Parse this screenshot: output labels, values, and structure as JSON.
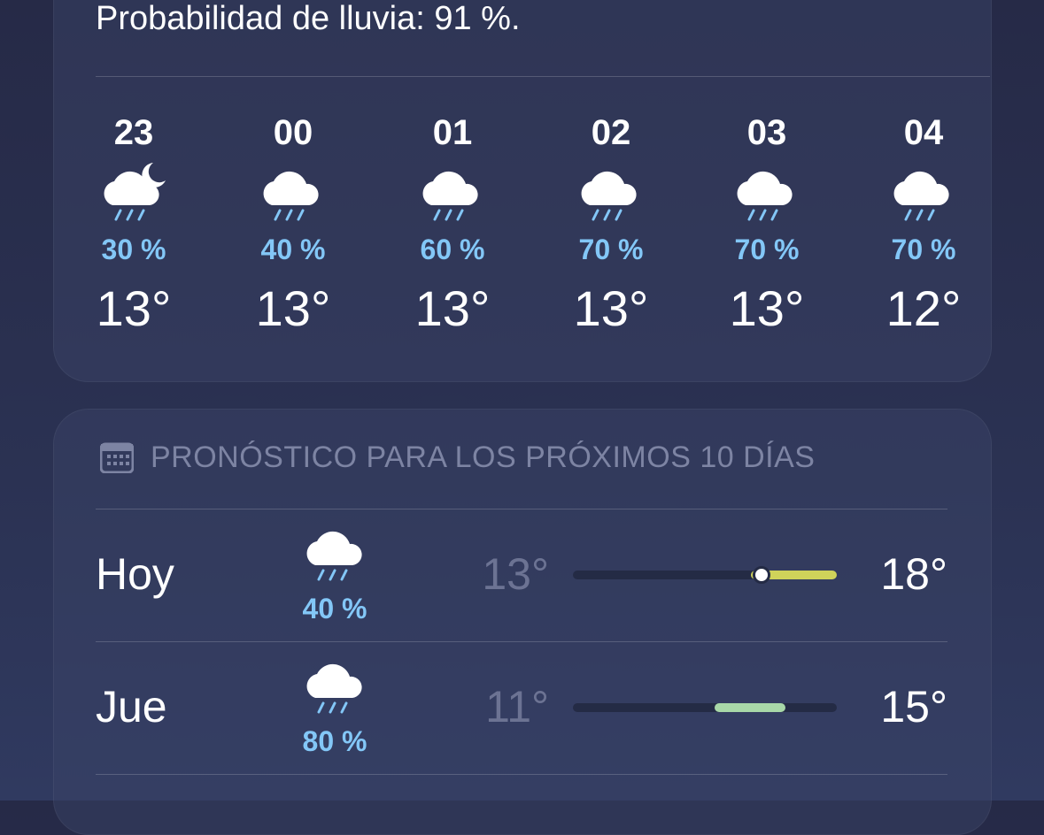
{
  "summary": "Probabilidad de lluvia: 91 %.",
  "hourly": [
    {
      "hour": "23",
      "precip": "30 %",
      "temp": "13°"
    },
    {
      "hour": "00",
      "precip": "40 %",
      "temp": "13°"
    },
    {
      "hour": "01",
      "precip": "60 %",
      "temp": "13°"
    },
    {
      "hour": "02",
      "precip": "70 %",
      "temp": "13°"
    },
    {
      "hour": "03",
      "precip": "70 %",
      "temp": "13°"
    },
    {
      "hour": "04",
      "precip": "70 %",
      "temp": "12°"
    }
  ],
  "daily": {
    "title": "PRONÓSTICO PARA LOS PRÓXIMOS 10 DÍAS",
    "rows": [
      {
        "day": "Hoy",
        "precip": "40 %",
        "low": "13°",
        "high": "18°"
      },
      {
        "day": "Jue",
        "precip": "80 %",
        "low": "11°",
        "high": "15°"
      }
    ]
  }
}
